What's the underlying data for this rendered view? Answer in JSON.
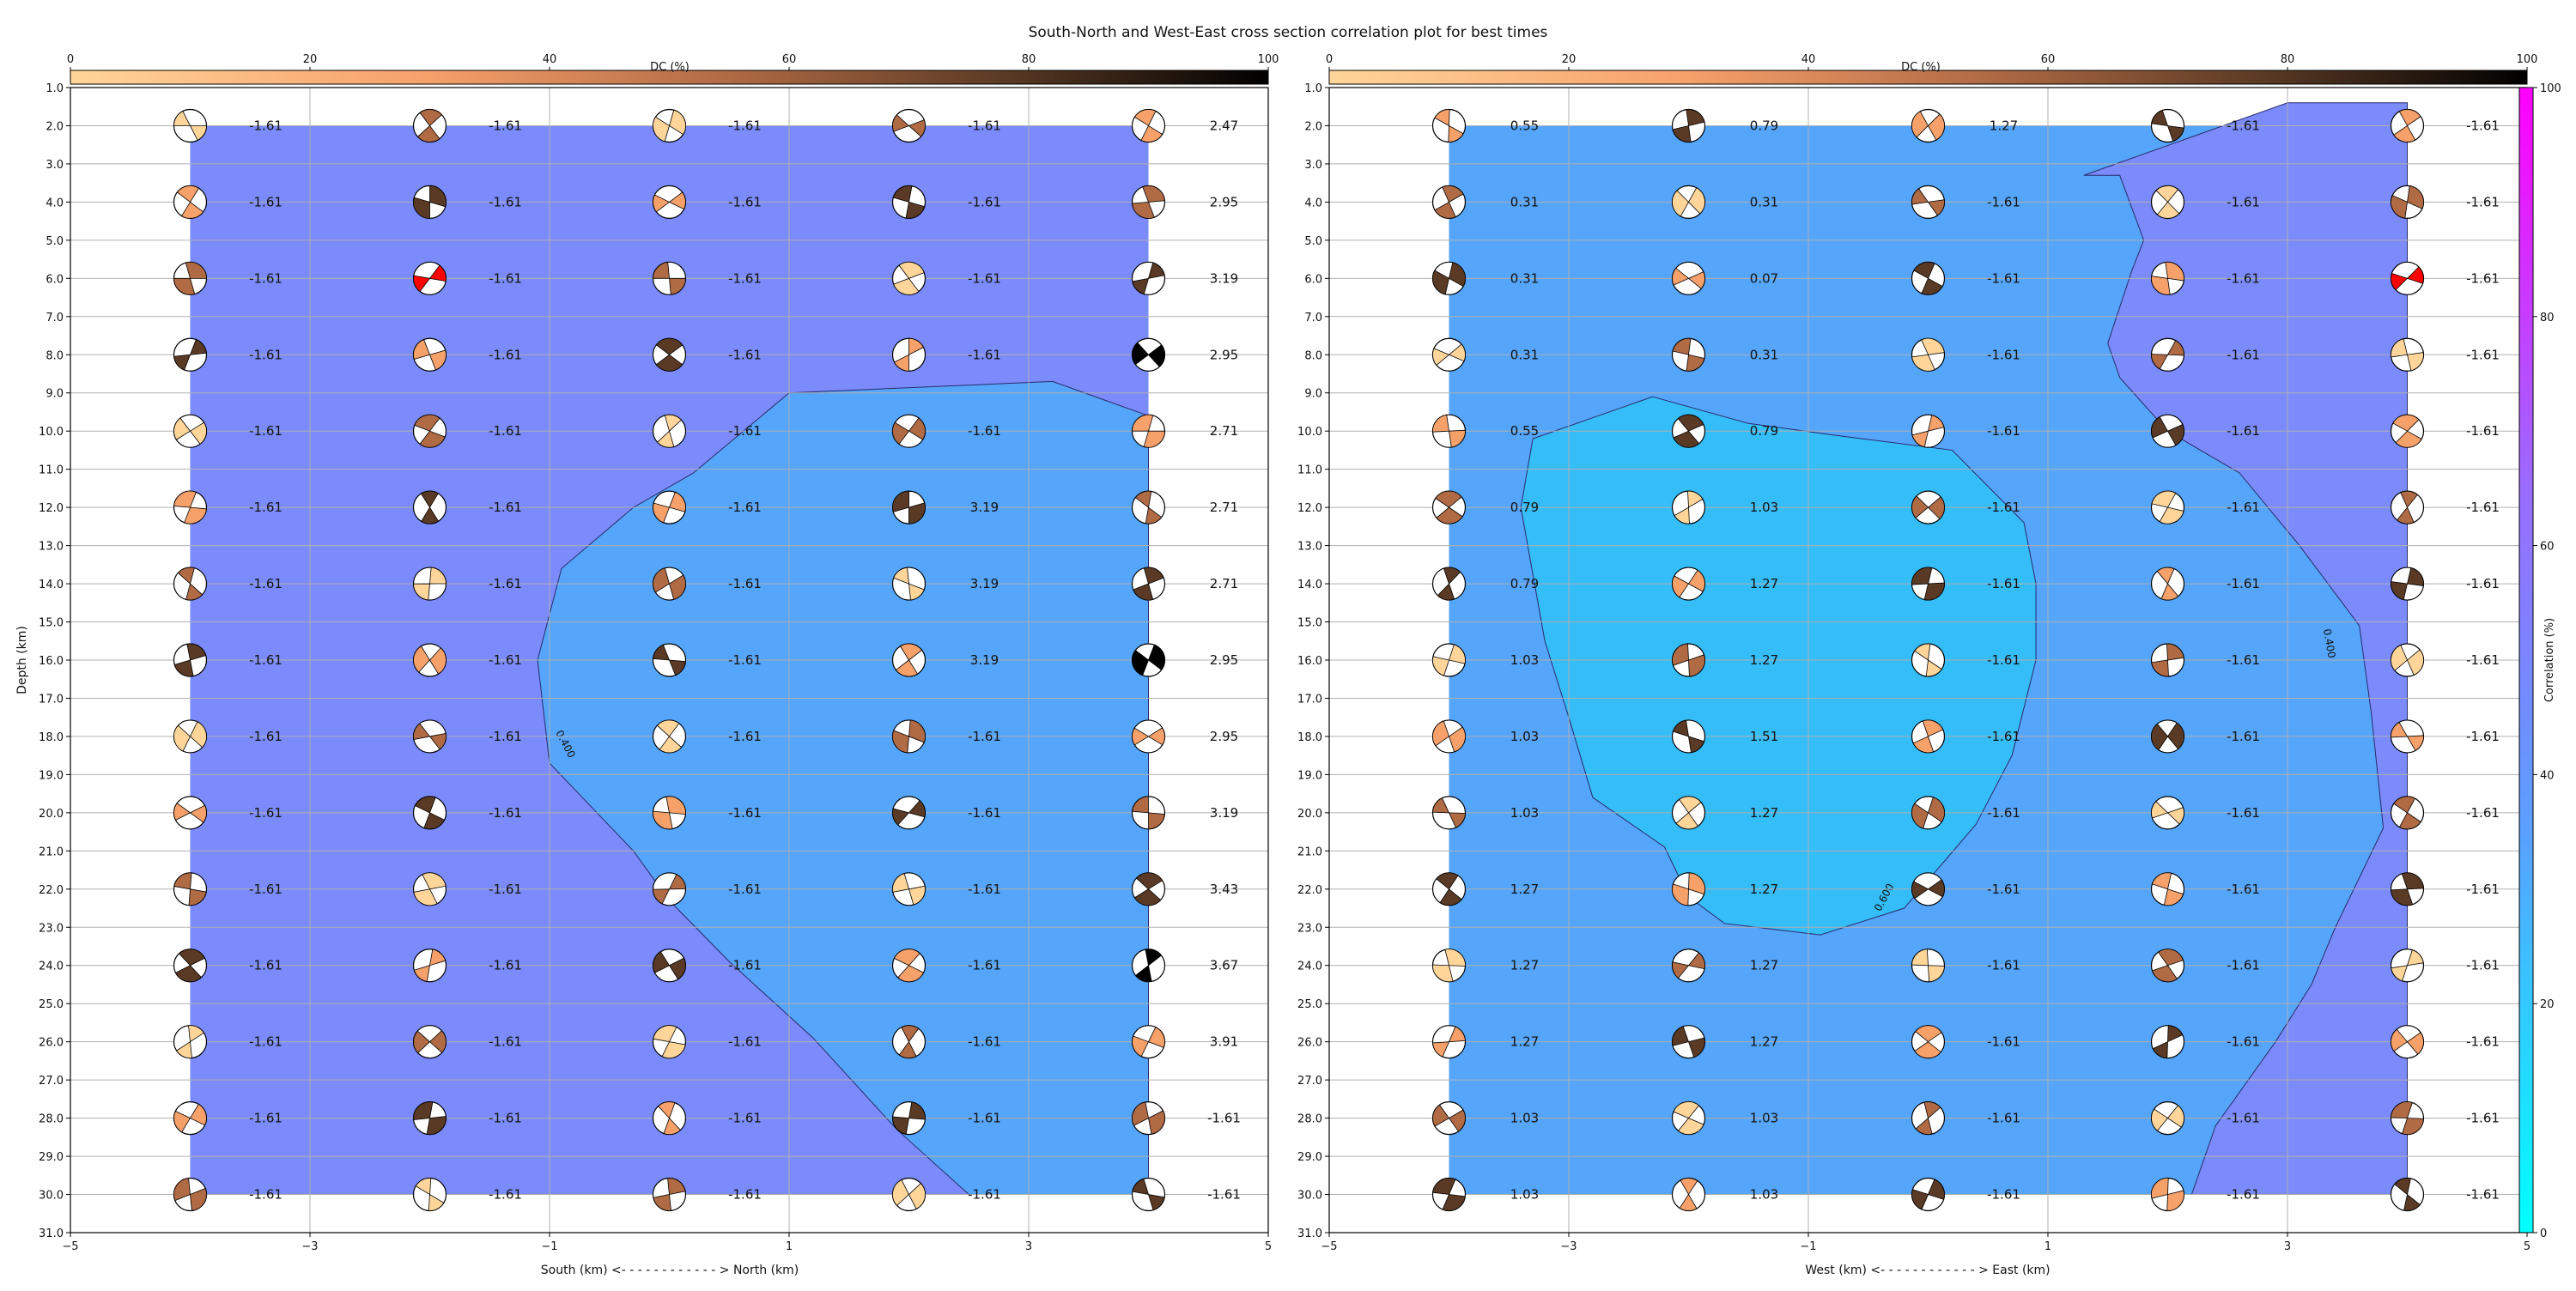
{
  "title": "South-North and West-East cross section correlation plot for best times",
  "colors": {
    "dc_colormap": [
      "#ffd59a",
      "#f6a06a",
      "#b06a44",
      "#5a3a24",
      "#000000"
    ],
    "corr_low": "#00ffff",
    "corr_mid": "#5aa0ff",
    "corr_high": "#ff00ff",
    "region_low": "#55a5fb",
    "region_mid": "#7b8bfb",
    "region_inner": "#35bdf8",
    "highlight_beachball": "#ff0000"
  },
  "dc_colorbar": {
    "label": "DC (%)",
    "ticks": [
      "0",
      "20",
      "40",
      "60",
      "80",
      "100"
    ],
    "range": [
      0,
      100
    ]
  },
  "corr_colorbar": {
    "label": "Correlation (%)",
    "ticks": [
      "0",
      "20",
      "40",
      "60",
      "80",
      "100"
    ],
    "range": [
      0,
      100
    ]
  },
  "chart_data": [
    {
      "type": "heatmap",
      "name": "South-North section",
      "xlabel": "South (km) <- - - - - - - - - - - - > North (km)",
      "ylabel": "Depth (km)",
      "xlim": [
        -5,
        5
      ],
      "ylim": [
        31,
        1
      ],
      "x_ticks": [
        "−5",
        "−3",
        "−1",
        "1",
        "3",
        "5"
      ],
      "y_ticks": [
        "1.0",
        "2.0",
        "3.0",
        "4.0",
        "5.0",
        "6.0",
        "7.0",
        "8.0",
        "9.0",
        "10.0",
        "11.0",
        "12.0",
        "13.0",
        "14.0",
        "15.0",
        "16.0",
        "17.0",
        "18.0",
        "19.0",
        "20.0",
        "21.0",
        "22.0",
        "23.0",
        "24.0",
        "25.0",
        "26.0",
        "27.0",
        "28.0",
        "29.0",
        "30.0",
        "31.0"
      ],
      "x": [
        -4,
        -2,
        0,
        2,
        4
      ],
      "depths": [
        2,
        4,
        6,
        8,
        10,
        12,
        14,
        16,
        18,
        20,
        22,
        24,
        26,
        28,
        30
      ],
      "contour_label": "0.400",
      "values": [
        [
          "-1.61",
          "-1.61",
          "-1.61",
          "-1.61",
          "2.47"
        ],
        [
          "-1.61",
          "-1.61",
          "-1.61",
          "-1.61",
          "2.95"
        ],
        [
          "-1.61",
          "-1.61",
          "-1.61",
          "-1.61",
          "3.19"
        ],
        [
          "-1.61",
          "-1.61",
          "-1.61",
          "-1.61",
          "2.95"
        ],
        [
          "-1.61",
          "-1.61",
          "-1.61",
          "-1.61",
          "2.71"
        ],
        [
          "-1.61",
          "-1.61",
          "-1.61",
          "3.19",
          "2.71"
        ],
        [
          "-1.61",
          "-1.61",
          "-1.61",
          "3.19",
          "2.71"
        ],
        [
          "-1.61",
          "-1.61",
          "-1.61",
          "3.19",
          "2.95"
        ],
        [
          "-1.61",
          "-1.61",
          "-1.61",
          "-1.61",
          "2.95"
        ],
        [
          "-1.61",
          "-1.61",
          "-1.61",
          "-1.61",
          "3.19"
        ],
        [
          "-1.61",
          "-1.61",
          "-1.61",
          "-1.61",
          "3.43"
        ],
        [
          "-1.61",
          "-1.61",
          "-1.61",
          "-1.61",
          "3.67"
        ],
        [
          "-1.61",
          "-1.61",
          "-1.61",
          "-1.61",
          "3.91"
        ],
        [
          "-1.61",
          "-1.61",
          "-1.61",
          "-1.61",
          "-1.61"
        ],
        [
          "-1.61",
          "-1.61",
          "-1.61",
          "-1.61",
          "-1.61"
        ]
      ]
    },
    {
      "type": "heatmap",
      "name": "West-East section",
      "xlabel": "West (km) <- - - - - - - - - - - - > East (km)",
      "ylabel": "",
      "xlim": [
        -5,
        5
      ],
      "ylim": [
        31,
        1
      ],
      "x_ticks": [
        "−5",
        "−3",
        "−1",
        "1",
        "3",
        "5"
      ],
      "y_ticks": [
        "1.0",
        "2.0",
        "3.0",
        "4.0",
        "5.0",
        "6.0",
        "7.0",
        "8.0",
        "9.0",
        "10.0",
        "11.0",
        "12.0",
        "13.0",
        "14.0",
        "15.0",
        "16.0",
        "17.0",
        "18.0",
        "19.0",
        "20.0",
        "21.0",
        "22.0",
        "23.0",
        "24.0",
        "25.0",
        "26.0",
        "27.0",
        "28.0",
        "29.0",
        "30.0",
        "31.0"
      ],
      "x": [
        -4,
        -2,
        0,
        2,
        4
      ],
      "depths": [
        2,
        4,
        6,
        8,
        10,
        12,
        14,
        16,
        18,
        20,
        22,
        24,
        26,
        28,
        30
      ],
      "contour_labels": [
        "0.400",
        "0.600"
      ],
      "values": [
        [
          "0.55",
          "0.79",
          "1.27",
          "-1.61",
          "-1.61"
        ],
        [
          "0.31",
          "0.31",
          "-1.61",
          "-1.61",
          "-1.61"
        ],
        [
          "0.31",
          "0.07",
          "-1.61",
          "-1.61",
          "-1.61"
        ],
        [
          "0.31",
          "0.31",
          "-1.61",
          "-1.61",
          "-1.61"
        ],
        [
          "0.55",
          "0.79",
          "-1.61",
          "-1.61",
          "-1.61"
        ],
        [
          "0.79",
          "1.03",
          "-1.61",
          "-1.61",
          "-1.61"
        ],
        [
          "0.79",
          "1.27",
          "-1.61",
          "-1.61",
          "-1.61"
        ],
        [
          "1.03",
          "1.27",
          "-1.61",
          "-1.61",
          "-1.61"
        ],
        [
          "1.03",
          "1.51",
          "-1.61",
          "-1.61",
          "-1.61"
        ],
        [
          "1.03",
          "1.27",
          "-1.61",
          "-1.61",
          "-1.61"
        ],
        [
          "1.27",
          "1.27",
          "-1.61",
          "-1.61",
          "-1.61"
        ],
        [
          "1.27",
          "1.27",
          "-1.61",
          "-1.61",
          "-1.61"
        ],
        [
          "1.27",
          "1.27",
          "-1.61",
          "-1.61",
          "-1.61"
        ],
        [
          "1.03",
          "1.03",
          "-1.61",
          "-1.61",
          "-1.61"
        ],
        [
          "1.03",
          "1.03",
          "-1.61",
          "-1.61",
          "-1.61"
        ]
      ]
    }
  ]
}
